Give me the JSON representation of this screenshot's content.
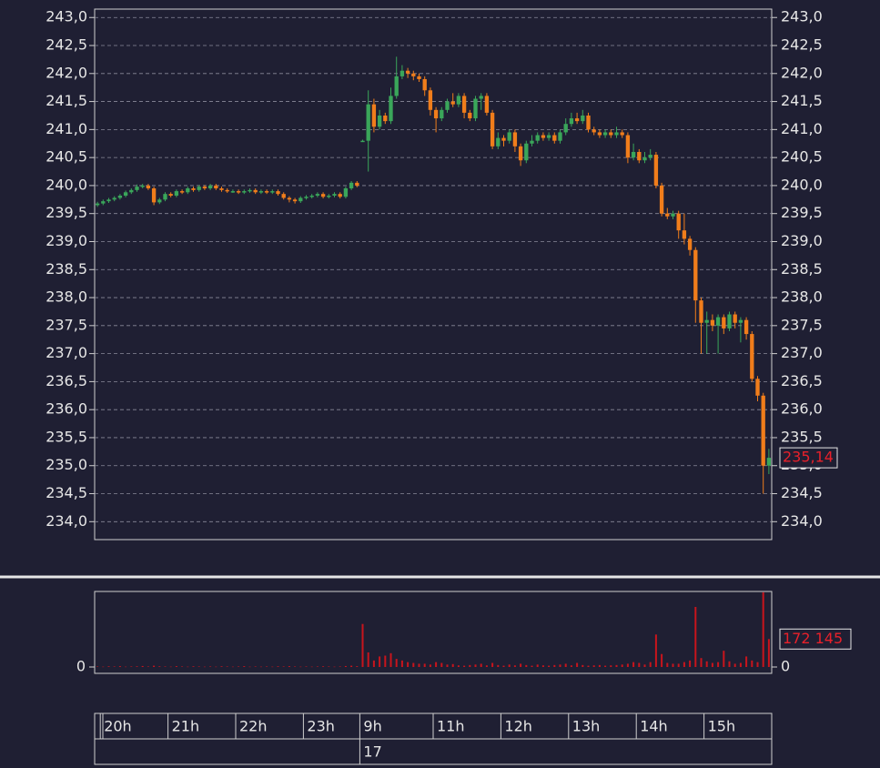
{
  "chart_data": {
    "type": "candlestick",
    "categories": [
      null,
      "20h",
      null,
      null,
      null,
      null,
      null,
      null,
      null,
      null,
      null,
      null,
      null,
      "21h",
      null,
      null,
      null,
      null,
      null,
      null,
      null,
      null,
      null,
      null,
      null,
      "22h",
      null,
      null,
      null,
      null,
      null,
      null,
      null,
      null,
      null,
      null,
      null,
      "23h",
      null,
      null,
      null,
      null,
      null,
      null,
      null,
      null,
      null,
      "9h",
      null,
      null,
      null,
      null,
      null,
      null,
      null,
      null,
      null,
      null,
      null,
      null,
      "11h",
      null,
      null,
      null,
      null,
      null,
      null,
      null,
      null,
      null,
      null,
      null,
      "12h",
      null,
      null,
      null,
      null,
      null,
      null,
      null,
      null,
      null,
      null,
      null,
      "13h",
      null,
      null,
      null,
      null,
      null,
      null,
      null,
      null,
      null,
      null,
      null,
      "14h",
      null,
      null,
      null,
      null,
      null,
      null,
      null,
      null,
      null,
      null,
      null,
      "15h",
      null,
      null,
      null,
      null,
      null,
      null,
      null,
      null,
      null,
      null,
      null
    ],
    "date_categories": [
      null,
      null,
      null,
      null,
      null,
      null,
      null,
      null,
      null,
      null,
      null,
      null,
      null,
      null,
      null,
      null,
      null,
      null,
      null,
      null,
      null,
      null,
      null,
      null,
      null,
      null,
      null,
      null,
      null,
      null,
      null,
      null,
      null,
      null,
      null,
      null,
      null,
      null,
      null,
      null,
      null,
      null,
      null,
      null,
      null,
      null,
      null,
      "17",
      null,
      null,
      null,
      null,
      null,
      null,
      null,
      null,
      null,
      null,
      null,
      null,
      null,
      null,
      null,
      null,
      null,
      null,
      null,
      null,
      null,
      null,
      null,
      null,
      null,
      null,
      null,
      null,
      null,
      null,
      null,
      null,
      null,
      null,
      null,
      null,
      null,
      null,
      null,
      null,
      null,
      null,
      null,
      null,
      null,
      null,
      null,
      null,
      null,
      null,
      null,
      null,
      null,
      null,
      null,
      null,
      null,
      null,
      null,
      null,
      null,
      null,
      null,
      null,
      null,
      null,
      null,
      null,
      null,
      null,
      null,
      null
    ],
    "open": [
      239.65,
      239.68,
      239.72,
      239.75,
      239.78,
      239.82,
      239.88,
      239.92,
      239.98,
      240.0,
      239.95,
      239.7,
      239.75,
      239.85,
      239.82,
      239.9,
      239.88,
      239.95,
      239.92,
      239.98,
      239.95,
      240.0,
      239.95,
      239.92,
      239.9,
      239.9,
      239.88,
      239.9,
      239.92,
      239.88,
      239.9,
      239.88,
      239.9,
      239.85,
      239.78,
      239.75,
      239.72,
      239.78,
      239.8,
      239.82,
      239.85,
      239.8,
      239.82,
      239.85,
      239.8,
      239.95,
      240.05,
      240.8,
      240.8,
      241.45,
      241.05,
      241.25,
      241.15,
      241.6,
      241.95,
      242.05,
      242.0,
      241.95,
      241.9,
      241.7,
      241.35,
      241.2,
      241.35,
      241.5,
      241.45,
      241.6,
      241.3,
      241.2,
      241.55,
      241.6,
      241.3,
      240.7,
      240.85,
      240.8,
      240.95,
      240.7,
      240.45,
      240.75,
      240.8,
      240.9,
      240.85,
      240.9,
      240.8,
      240.95,
      241.1,
      241.2,
      241.15,
      241.25,
      241.0,
      240.95,
      240.9,
      240.95,
      240.9,
      240.95,
      240.9,
      240.5,
      240.6,
      240.45,
      240.5,
      240.55,
      240.0,
      239.5,
      239.45,
      239.5,
      239.2,
      239.05,
      238.85,
      237.95,
      237.55,
      237.6,
      237.5,
      237.65,
      237.45,
      237.7,
      237.55,
      237.6,
      237.35,
      236.55,
      236.25,
      235.0
    ],
    "high": [
      239.71,
      239.75,
      239.78,
      239.81,
      239.85,
      239.91,
      239.95,
      240.02,
      240.03,
      240.03,
      239.98,
      239.78,
      239.88,
      239.88,
      239.93,
      239.93,
      239.98,
      239.98,
      240.01,
      240.01,
      240.03,
      240.03,
      239.98,
      239.95,
      239.93,
      239.93,
      239.93,
      239.95,
      239.95,
      239.93,
      239.93,
      239.93,
      239.93,
      239.88,
      239.81,
      239.78,
      239.81,
      239.83,
      239.85,
      239.88,
      239.88,
      239.85,
      239.88,
      239.88,
      239.98,
      240.08,
      240.08,
      240.82,
      241.7,
      241.55,
      241.35,
      241.3,
      241.75,
      242.3,
      242.15,
      242.1,
      242.05,
      242.0,
      241.95,
      241.75,
      241.4,
      241.4,
      241.55,
      241.65,
      241.65,
      241.65,
      241.35,
      241.6,
      241.65,
      241.65,
      241.35,
      240.95,
      240.9,
      241.0,
      241.0,
      240.75,
      240.8,
      240.9,
      240.95,
      240.95,
      240.95,
      240.95,
      241.0,
      241.2,
      241.3,
      241.3,
      241.35,
      241.3,
      241.05,
      241.0,
      241.0,
      241.0,
      241.05,
      241.0,
      240.95,
      240.75,
      240.65,
      240.6,
      240.65,
      240.6,
      240.05,
      239.6,
      239.55,
      239.55,
      239.5,
      239.1,
      238.9,
      238.0,
      237.75,
      237.7,
      237.7,
      237.7,
      237.75,
      237.75,
      237.65,
      237.65,
      237.4,
      236.6,
      236.3,
      235.3
    ],
    "low": [
      239.62,
      239.65,
      239.69,
      239.72,
      239.75,
      239.79,
      239.85,
      239.89,
      239.95,
      239.92,
      239.65,
      239.67,
      239.72,
      239.79,
      239.79,
      239.85,
      239.85,
      239.89,
      239.89,
      239.92,
      239.92,
      239.92,
      239.89,
      239.87,
      239.87,
      239.85,
      239.85,
      239.87,
      239.85,
      239.85,
      239.85,
      239.85,
      239.82,
      239.75,
      239.7,
      239.68,
      239.69,
      239.75,
      239.77,
      239.79,
      239.77,
      239.77,
      239.79,
      239.77,
      239.77,
      239.92,
      239.97,
      240.78,
      240.25,
      240.95,
      241.0,
      241.1,
      241.1,
      241.55,
      241.9,
      241.92,
      241.88,
      241.85,
      241.6,
      241.25,
      240.95,
      241.15,
      241.3,
      241.4,
      241.4,
      241.2,
      241.15,
      241.15,
      241.35,
      241.25,
      240.65,
      240.65,
      240.7,
      240.75,
      240.6,
      240.35,
      240.4,
      240.7,
      240.75,
      240.8,
      240.8,
      240.75,
      240.75,
      240.9,
      241.05,
      241.1,
      241.1,
      240.95,
      240.9,
      240.85,
      240.85,
      240.85,
      240.85,
      240.85,
      240.4,
      240.45,
      240.4,
      240.4,
      240.45,
      239.95,
      239.45,
      239.4,
      239.4,
      239.05,
      238.95,
      238.75,
      237.55,
      237.0,
      237.0,
      237.4,
      237.0,
      237.35,
      237.4,
      237.45,
      237.2,
      237.25,
      236.5,
      236.15,
      234.5,
      234.85
    ],
    "close": [
      239.68,
      239.72,
      239.75,
      239.78,
      239.82,
      239.88,
      239.92,
      239.98,
      240.0,
      239.95,
      239.7,
      239.75,
      239.85,
      239.82,
      239.9,
      239.88,
      239.95,
      239.92,
      239.98,
      239.95,
      240.0,
      239.95,
      239.92,
      239.9,
      239.9,
      239.88,
      239.9,
      239.92,
      239.88,
      239.9,
      239.88,
      239.9,
      239.85,
      239.78,
      239.75,
      239.72,
      239.78,
      239.8,
      239.82,
      239.85,
      239.8,
      239.82,
      239.85,
      239.8,
      239.95,
      240.05,
      240.0,
      240.8,
      241.45,
      241.05,
      241.25,
      241.15,
      241.6,
      241.95,
      242.05,
      242.0,
      241.95,
      241.9,
      241.7,
      241.35,
      241.2,
      241.35,
      241.5,
      241.45,
      241.6,
      241.3,
      241.2,
      241.55,
      241.6,
      241.3,
      240.7,
      240.85,
      240.8,
      240.95,
      240.7,
      240.45,
      240.75,
      240.8,
      240.9,
      240.85,
      240.9,
      240.8,
      240.95,
      241.1,
      241.2,
      241.15,
      241.25,
      241.0,
      240.95,
      240.9,
      240.95,
      240.9,
      240.95,
      240.9,
      240.5,
      240.6,
      240.45,
      240.5,
      240.55,
      240.0,
      239.5,
      239.45,
      239.5,
      239.2,
      239.05,
      238.85,
      237.95,
      237.55,
      237.6,
      237.5,
      237.65,
      237.45,
      237.7,
      237.55,
      237.6,
      237.35,
      236.55,
      236.25,
      235.0,
      235.14
    ],
    "volume": [
      3000,
      2000,
      4000,
      3000,
      5000,
      2000,
      3000,
      4000,
      6000,
      3000,
      8000,
      4000,
      3000,
      2000,
      5000,
      3000,
      2000,
      4000,
      3000,
      2000,
      3000,
      2000,
      4000,
      3000,
      2000,
      3000,
      5000,
      2000,
      3000,
      2000,
      3000,
      2000,
      4000,
      3000,
      5000,
      3000,
      2000,
      3000,
      2000,
      3000,
      4000,
      3000,
      2000,
      3000,
      6000,
      8000,
      5000,
      265000,
      90000,
      40000,
      65000,
      70000,
      85000,
      50000,
      40000,
      30000,
      25000,
      20000,
      20000,
      15000,
      30000,
      25000,
      15000,
      18000,
      10000,
      8000,
      12000,
      15000,
      20000,
      10000,
      25000,
      12000,
      8000,
      15000,
      10000,
      20000,
      12000,
      8000,
      15000,
      10000,
      8000,
      12000,
      15000,
      20000,
      10000,
      25000,
      12000,
      8000,
      10000,
      12000,
      8000,
      10000,
      12000,
      15000,
      20000,
      30000,
      25000,
      15000,
      30000,
      200000,
      80000,
      25000,
      20000,
      20000,
      30000,
      40000,
      370000,
      55000,
      35000,
      25000,
      30000,
      100000,
      35000,
      20000,
      25000,
      65000,
      40000,
      30000,
      460000,
      172145
    ],
    "up_color": "#3aa65a",
    "down_color": "#f07d1b",
    "volume_color": "#c8141c",
    "ylim": [
      233.68,
      243.15
    ],
    "yticks": [
      {
        "value": 234.0,
        "label": "234,0"
      },
      {
        "value": 234.5,
        "label": "234,5"
      },
      {
        "value": 235.0,
        "label": "235,0"
      },
      {
        "value": 235.5,
        "label": "235,5"
      },
      {
        "value": 236.0,
        "label": "236,0"
      },
      {
        "value": 236.5,
        "label": "236,5"
      },
      {
        "value": 237.0,
        "label": "237,0"
      },
      {
        "value": 237.5,
        "label": "237,5"
      },
      {
        "value": 238.0,
        "label": "238,0"
      },
      {
        "value": 238.5,
        "label": "238,5"
      },
      {
        "value": 239.0,
        "label": "239,0"
      },
      {
        "value": 239.5,
        "label": "239,5"
      },
      {
        "value": 240.0,
        "label": "240,0"
      },
      {
        "value": 240.5,
        "label": "240,5"
      },
      {
        "value": 241.0,
        "label": "241,0"
      },
      {
        "value": 241.5,
        "label": "241,5"
      },
      {
        "value": 242.0,
        "label": "242,0"
      },
      {
        "value": 242.5,
        "label": "242,5"
      },
      {
        "value": 243.0,
        "label": "243,0"
      }
    ],
    "grid": true,
    "last_price": {
      "value": 235.14,
      "label": "235,14"
    },
    "volume_ylim": [
      0,
      510000
    ],
    "volume_yticks": [
      0
    ],
    "last_volume": {
      "value": 172145,
      "label": "172 145"
    }
  }
}
